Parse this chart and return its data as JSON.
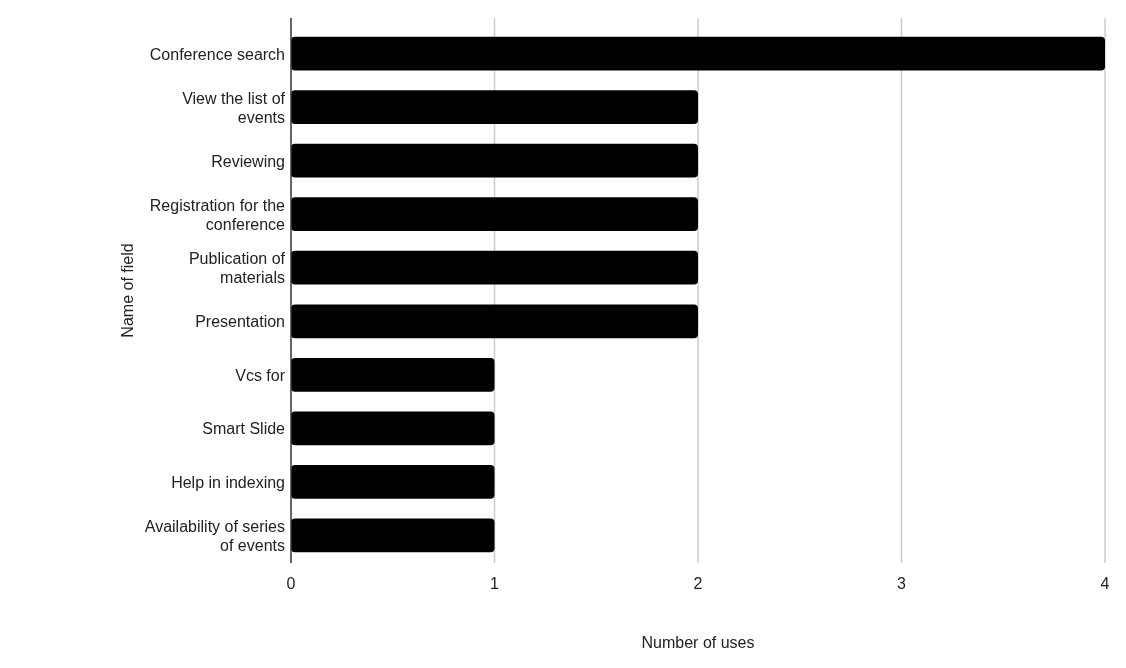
{
  "chart_data": {
    "type": "bar",
    "orientation": "horizontal",
    "xlabel": "Number of uses",
    "ylabel": "Name of field",
    "categories": [
      "Conference search",
      "View the list of events",
      "Reviewing",
      "Registration for the conference",
      "Publication of materials",
      "Presentation",
      "Vcs for",
      "Smart Slide",
      "Help in indexing",
      "Availability of series of events"
    ],
    "values": [
      4,
      2,
      2,
      2,
      2,
      2,
      1,
      1,
      1,
      1
    ],
    "color": "#000000",
    "xlim": [
      0,
      4
    ],
    "xticks": [
      0,
      1,
      2,
      3,
      4
    ],
    "grid": "x"
  }
}
